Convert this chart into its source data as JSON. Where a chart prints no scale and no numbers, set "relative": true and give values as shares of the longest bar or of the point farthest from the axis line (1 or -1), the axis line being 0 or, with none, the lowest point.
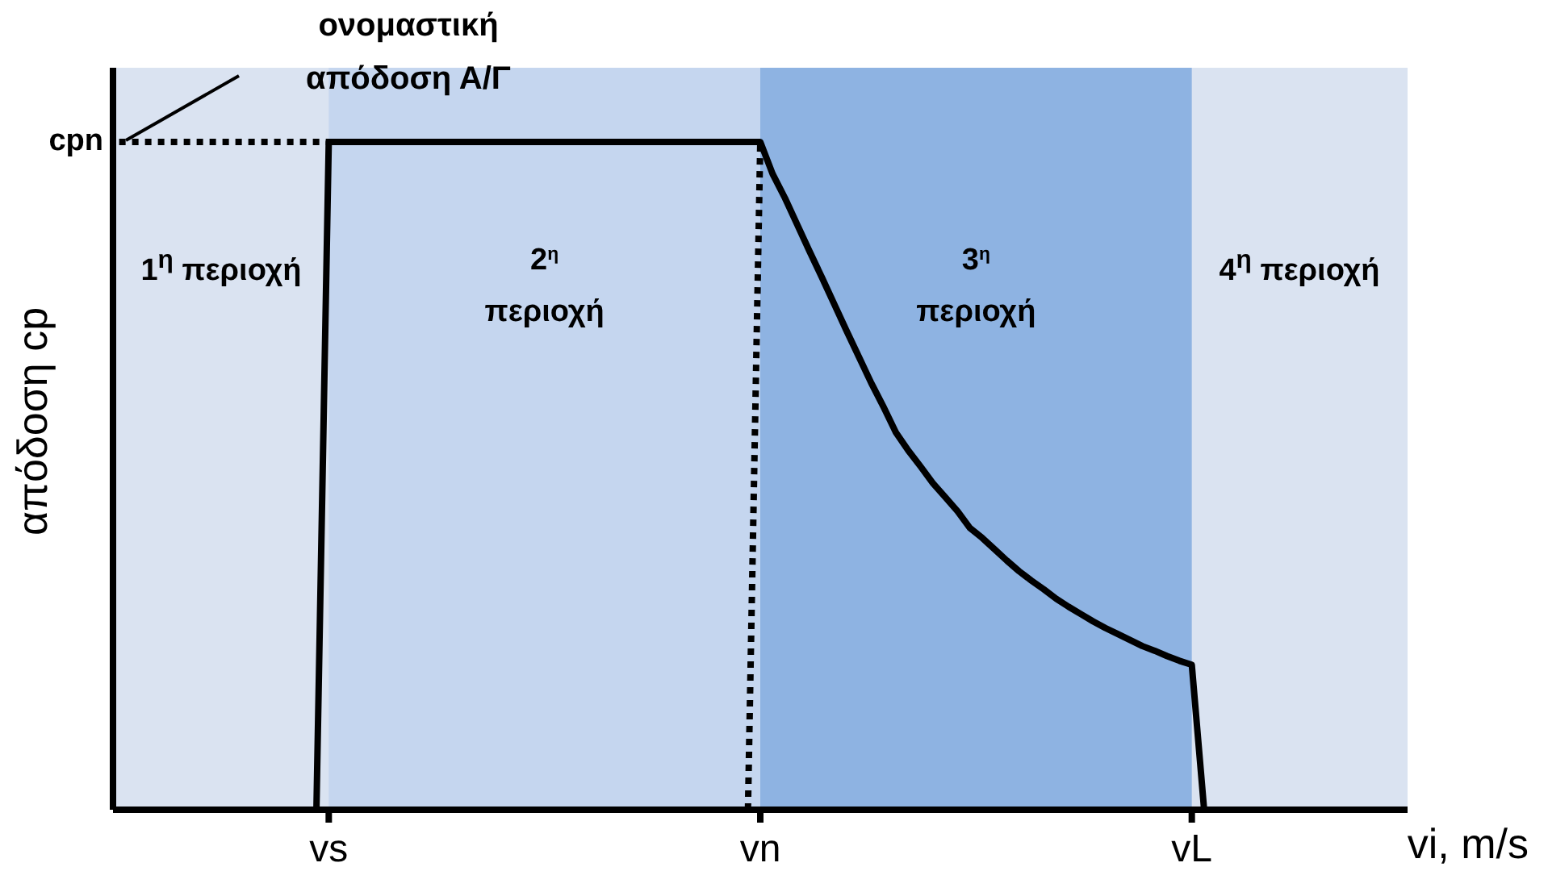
{
  "chart_data": {
    "type": "line",
    "relative": true,
    "ylabel": "απόδοση cp",
    "xlabel": "vi, m/s",
    "marker": "none",
    "categories": [
      null,
      null,
      null,
      null,
      null,
      null,
      null,
      null,
      null,
      null,
      null,
      null,
      null,
      null,
      null,
      null,
      null,
      "vs",
      null,
      null,
      null,
      null,
      null,
      null,
      null,
      null,
      null,
      null,
      null,
      null,
      null,
      null,
      null,
      null,
      null,
      null,
      null,
      null,
      null,
      null,
      null,
      null,
      null,
      null,
      null,
      null,
      null,
      null,
      null,
      null,
      null,
      null,
      "vn",
      null,
      null,
      null,
      null,
      null,
      null,
      null,
      null,
      null,
      null,
      null,
      null,
      null,
      null,
      null,
      null,
      null,
      null,
      null,
      null,
      null,
      null,
      null,
      null,
      null,
      null,
      null,
      null,
      null,
      null,
      null,
      null,
      null,
      null,
      "vL",
      null,
      null,
      null,
      null,
      null,
      null,
      null,
      null,
      null,
      null,
      null,
      null,
      null,
      null,
      null,
      null,
      null
    ],
    "series": [
      {
        "color": "#000000",
        "line_style": "solid",
        "values": [
          null,
          null,
          null,
          null,
          null,
          null,
          null,
          null,
          null,
          null,
          null,
          null,
          null,
          null,
          null,
          null,
          0,
          1,
          1,
          1,
          1,
          1,
          1,
          1,
          1,
          1,
          1,
          1,
          1,
          1,
          1,
          1,
          1,
          1,
          1,
          1,
          1,
          1,
          1,
          1,
          1,
          1,
          1,
          1,
          1,
          1,
          1,
          1,
          1,
          1,
          1,
          1,
          1,
          0.952,
          0.916,
          0.876,
          0.836,
          0.797,
          0.757,
          0.717,
          0.678,
          0.639,
          0.603,
          0.565,
          0.538,
          0.514,
          0.489,
          0.468,
          0.447,
          0.422,
          0.407,
          0.39,
          0.373,
          0.357,
          0.343,
          0.33,
          0.316,
          0.304,
          0.293,
          0.282,
          0.272,
          0.263,
          0.254,
          0.245,
          0.238,
          0.23,
          0.223,
          0.217,
          0,
          null,
          null,
          null,
          null,
          null,
          null,
          null,
          null,
          null,
          null,
          null,
          null,
          null,
          null,
          null,
          null
        ]
      },
      {
        "color": "#000000",
        "line_style": "dotted",
        "values": [
          1,
          1,
          1,
          1,
          1,
          1,
          1,
          1,
          1,
          1,
          1,
          1,
          1,
          1,
          1,
          1,
          1,
          1,
          null,
          null,
          null,
          null,
          null,
          null,
          null,
          null,
          null,
          null,
          null,
          null,
          null,
          null,
          null,
          null,
          null,
          null,
          null,
          null,
          null,
          null,
          null,
          null,
          null,
          null,
          null,
          null,
          null,
          null,
          null,
          null,
          null,
          null,
          null,
          null,
          null,
          null,
          null,
          null,
          null,
          null,
          null,
          null,
          null,
          null,
          null,
          null,
          null,
          null,
          null,
          null,
          null,
          null,
          null,
          null,
          null,
          null,
          null,
          null,
          null,
          null,
          null,
          null,
          null,
          null,
          null,
          null,
          null,
          null,
          null,
          null,
          null,
          null,
          null,
          null,
          null,
          null,
          null,
          null,
          null,
          null,
          null,
          null,
          null,
          null,
          null
        ]
      },
      {
        "color": "#000000",
        "line_style": "dotted",
        "values": [
          null,
          null,
          null,
          null,
          null,
          null,
          null,
          null,
          null,
          null,
          null,
          null,
          null,
          null,
          null,
          null,
          null,
          null,
          null,
          null,
          null,
          null,
          null,
          null,
          null,
          null,
          null,
          null,
          null,
          null,
          null,
          null,
          null,
          null,
          null,
          null,
          null,
          null,
          null,
          null,
          null,
          null,
          null,
          null,
          null,
          null,
          null,
          null,
          null,
          null,
          null,
          0,
          1,
          null,
          null,
          null,
          null,
          null,
          null,
          null,
          null,
          null,
          null,
          null,
          null,
          null,
          null,
          null,
          null,
          null,
          null,
          null,
          null,
          null,
          null,
          null,
          null,
          null,
          null,
          null,
          null,
          null,
          null,
          null,
          null,
          null,
          null,
          null,
          null,
          null,
          null,
          null,
          null,
          null,
          null,
          null,
          null,
          null,
          null,
          null,
          null,
          null,
          null,
          null,
          null
        ]
      }
    ],
    "bands": [
      {
        "axis": "x",
        "from": "vs",
        "to": "vn",
        "label": "2$^{η}$ περιοχή",
        "color": "#c5d6ef"
      },
      {
        "axis": "x",
        "from": "vn",
        "to": "vL",
        "label": "3$^{η}$ περιοχή",
        "color": "#8eb3e2"
      }
    ],
    "annotations": [
      "cpn",
      "ονομαστική απόδοση Α/Γ",
      "1$^{η}$ περιοχή",
      "4$^{η}$ περιοχή"
    ]
  }
}
